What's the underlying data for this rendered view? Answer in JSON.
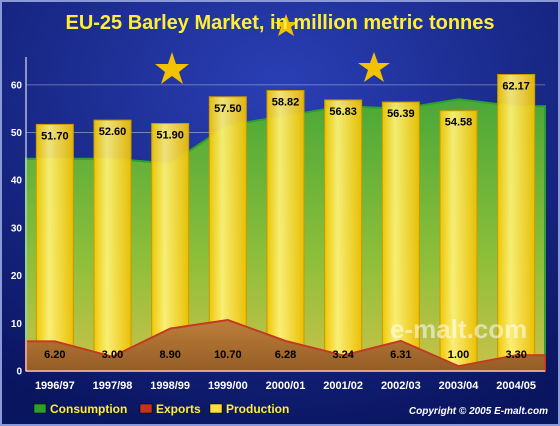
{
  "chart_data": {
    "type": "bar",
    "title": "EU-25 Barley Market, in million metric tonnes",
    "categories": [
      "1996/97",
      "1997/98",
      "1998/99",
      "1999/00",
      "2000/01",
      "2001/02",
      "2002/03",
      "2003/04",
      "2004/05"
    ],
    "ylim": [
      0,
      65
    ],
    "yticks": [
      0,
      10,
      20,
      30,
      40,
      50,
      60
    ],
    "grid": true,
    "legend_position": "bottom-left",
    "series": [
      {
        "name": "Consumption",
        "type": "area",
        "color": "#2e9e2e",
        "values": [
          44.5,
          44.5,
          43.5,
          51.5,
          53.5,
          55.5,
          55.0,
          57.0,
          55.5
        ]
      },
      {
        "name": "Exports",
        "type": "area",
        "color": "#c83020",
        "values": [
          6.2,
          3.0,
          8.9,
          10.7,
          6.28,
          3.24,
          6.31,
          1.0,
          3.3
        ],
        "labels": [
          "6.20",
          "3.00",
          "8.90",
          "10.70",
          "6.28",
          "3.24",
          "6.31",
          "1.00",
          "3.30"
        ]
      },
      {
        "name": "Production",
        "type": "bar",
        "color": "#ffe040",
        "values": [
          51.7,
          52.6,
          51.9,
          57.5,
          58.82,
          56.83,
          56.39,
          54.58,
          62.17
        ],
        "labels": [
          "51.70",
          "52.60",
          "51.90",
          "57.50",
          "58.82",
          "56.83",
          "56.39",
          "54.58",
          "62.17"
        ]
      }
    ]
  },
  "watermark": "e-malt.com",
  "copyright": "Copyright © 2005  E-malt.com"
}
